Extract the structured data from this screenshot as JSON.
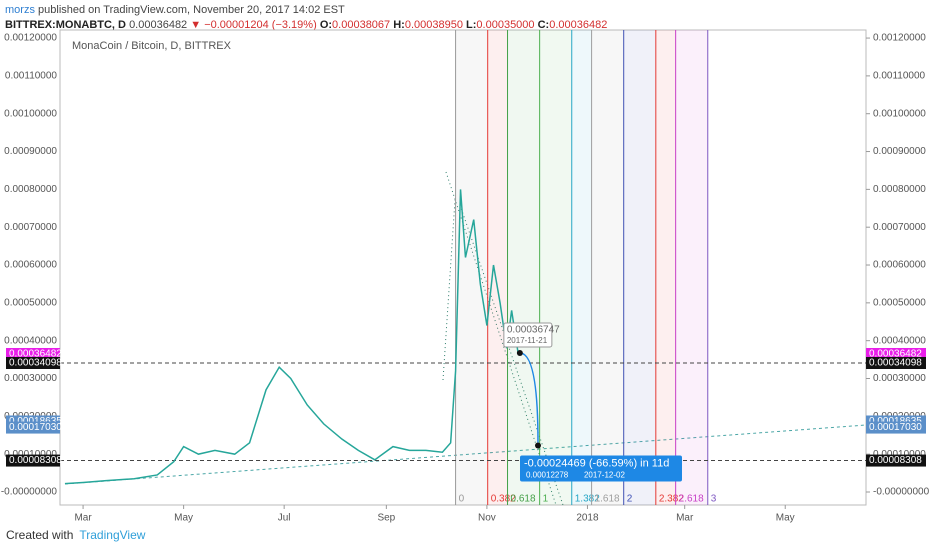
{
  "header": {
    "author": "morzs",
    "published": "published on TradingView.com, November 20, 2017 14:02 EST",
    "symbol": "BITTREX:MONABTC, D",
    "last": "0.00036482",
    "arrow": "▼",
    "change": "−0.00001204 (−3.19%)",
    "ohlc": [
      {
        "key": "O:",
        "value": "0.00038067"
      },
      {
        "key": "H:",
        "value": "0.00038950"
      },
      {
        "key": "L:",
        "value": "0.00035000"
      },
      {
        "key": "C:",
        "value": "0.00036482"
      }
    ]
  },
  "chart_data": {
    "type": "line",
    "title": "MonaCoin / Bitcoin, D, BITTREX",
    "xlim": [
      "2017-02-15",
      "2018-06-19"
    ],
    "xticks": [
      {
        "value": "2017-03-01",
        "label": "Mar"
      },
      {
        "value": "2017-05-01",
        "label": "May"
      },
      {
        "value": "2017-07-01",
        "label": "Jul"
      },
      {
        "value": "2017-09-01",
        "label": "Sep"
      },
      {
        "value": "2017-11-01",
        "label": "Nov"
      },
      {
        "value": "2018-01-01",
        "label": "2018"
      },
      {
        "value": "2018-03-01",
        "label": "Mar"
      },
      {
        "value": "2018-05-01",
        "label": "May"
      }
    ],
    "ylim": [
      -3.44e-05,
      0.0012213
    ],
    "yticks": [
      {
        "value": 0,
        "label": "-0.00000000"
      },
      {
        "value": 0.0001,
        "label": "0.00010000"
      },
      {
        "value": 0.0002,
        "label": "0.00020000"
      },
      {
        "value": 0.0003,
        "label": "0.00030000"
      },
      {
        "value": 0.0004,
        "label": "0.00040000"
      },
      {
        "value": 0.0005,
        "label": "0.00050000"
      },
      {
        "value": 0.0006,
        "label": "0.00060000"
      },
      {
        "value": 0.0007,
        "label": "0.00070000"
      },
      {
        "value": 0.0008,
        "label": "0.00080000"
      },
      {
        "value": 0.0009,
        "label": "0.00090000"
      },
      {
        "value": 0.001,
        "label": "0.00100000"
      },
      {
        "value": 0.0011,
        "label": "0.00110000"
      },
      {
        "value": 0.0012,
        "label": "0.00120000"
      }
    ],
    "x": [
      "2017-02-18",
      "2017-03-01",
      "2017-03-15",
      "2017-04-01",
      "2017-04-15",
      "2017-04-25",
      "2017-05-01",
      "2017-05-10",
      "2017-05-20",
      "2017-06-01",
      "2017-06-10",
      "2017-06-20",
      "2017-06-28",
      "2017-07-05",
      "2017-07-15",
      "2017-07-25",
      "2017-08-05",
      "2017-08-15",
      "2017-08-25",
      "2017-09-05",
      "2017-09-15",
      "2017-09-25",
      "2017-10-05",
      "2017-10-10",
      "2017-10-13",
      "2017-10-16",
      "2017-10-19",
      "2017-10-24",
      "2017-10-28",
      "2017-11-01",
      "2017-11-05",
      "2017-11-09",
      "2017-11-13",
      "2017-11-16",
      "2017-11-20"
    ],
    "series": [
      {
        "color": "#26a69a",
        "values": [
          2.2e-05,
          2.5e-05,
          3e-05,
          3.5e-05,
          4.5e-05,
          8e-05,
          0.00012,
          0.0001,
          0.00011,
          0.0001,
          0.00013,
          0.00027,
          0.00033,
          0.0003,
          0.00023,
          0.00018,
          0.00014,
          0.00011,
          8.5e-05,
          0.00012,
          0.00011,
          0.00011,
          0.000105,
          0.00013,
          0.00032,
          0.0008,
          0.00062,
          0.00072,
          0.00055,
          0.00044,
          0.0006,
          0.0005,
          0.00038,
          0.00048,
          0.000365
        ]
      }
    ],
    "price_tags": [
      {
        "value": 0.00036482,
        "label": "0.00036482",
        "color": "#e91ee9",
        "dashed_line": false
      },
      {
        "value": 0.00034098,
        "label": "0.00034098",
        "color": "#111111",
        "dashed_line": true
      },
      {
        "value": 0.00018635,
        "label": "0.00018635",
        "color": "#5b8fc9",
        "dashed_line": false
      },
      {
        "value": 0.0001703,
        "label": "0.00017030",
        "color": "#5b8fc9",
        "dashed_line": false
      },
      {
        "value": 8.308e-05,
        "label": "0.00008308",
        "color": "#111111",
        "dashed_line": true
      }
    ],
    "fib_time": {
      "start": "2017-10-13",
      "one": "2017-12-03",
      "levels": [
        {
          "level": 0,
          "color": "#999999"
        },
        {
          "level": 0.382,
          "color": "#e53935"
        },
        {
          "level": 0.618,
          "color": "#43a047"
        },
        {
          "level": 1,
          "color": "#4caf50"
        },
        {
          "level": 1.382,
          "color": "#26a6c6"
        },
        {
          "level": 1.618,
          "color": "#9e9e9e"
        },
        {
          "level": 2,
          "color": "#3f51b5"
        },
        {
          "level": 2.382,
          "color": "#e53935"
        },
        {
          "level": 2.618,
          "color": "#c73fc7"
        },
        {
          "level": 3,
          "color": "#7e57c2"
        }
      ]
    },
    "projection": {
      "start": {
        "x": "2017-11-21",
        "value": 0.00036747,
        "label": "0.00036747"
      },
      "end": {
        "x": "2017-12-02",
        "value": 0.00012278,
        "label": "0.00012278"
      },
      "change_label": "-0.00024469 (-66.59%) in 11d"
    }
  },
  "footer": {
    "created": "Created with",
    "brand": "TradingView"
  }
}
